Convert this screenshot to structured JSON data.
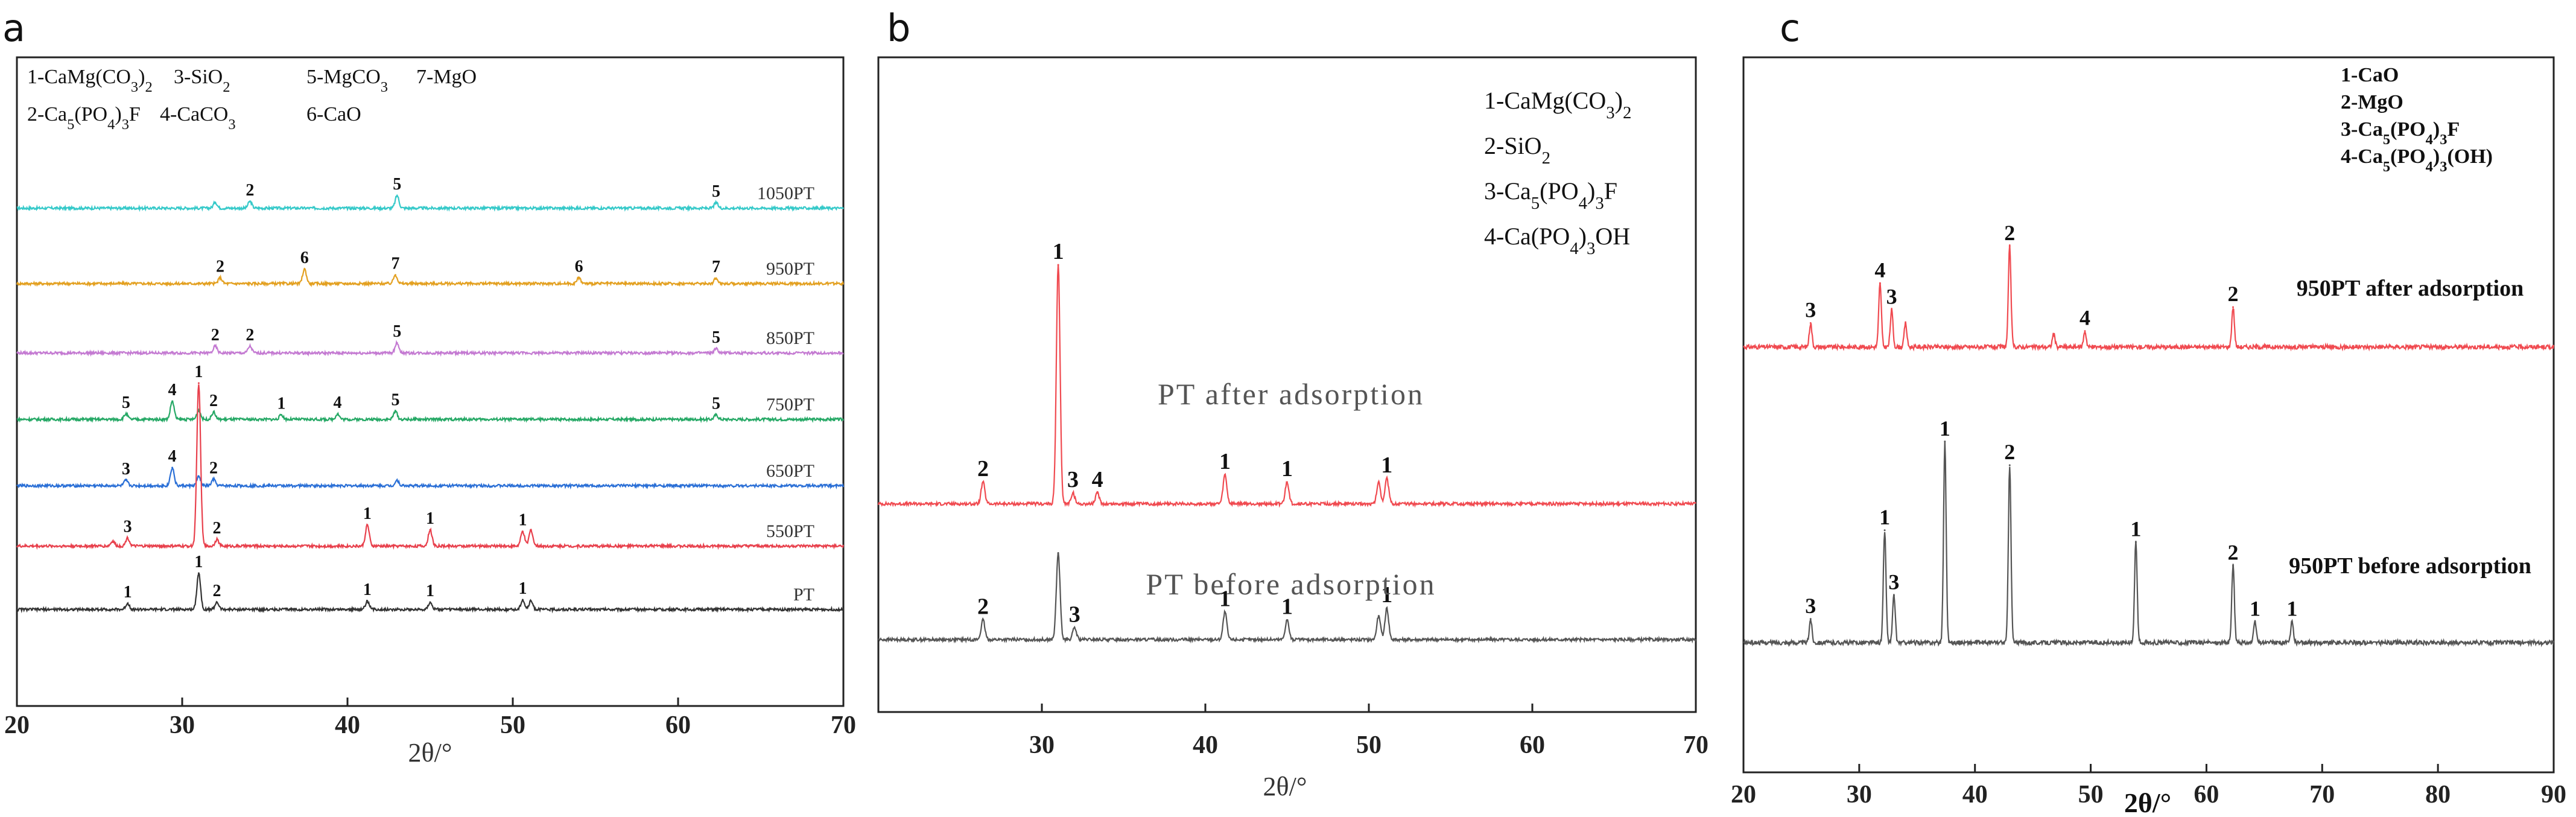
{
  "figure": {
    "panels": [
      {
        "letter": "a"
      },
      {
        "letter": "b"
      },
      {
        "letter": "c"
      }
    ]
  },
  "chart_data": [
    {
      "type": "line",
      "panel": "a",
      "xlabel": "2θ/°",
      "ylabel": "",
      "xlim": [
        20,
        70
      ],
      "xticks": [
        "20",
        "30",
        "40",
        "50",
        "60",
        "70"
      ],
      "grid": false,
      "legend_position": "top-left",
      "legend": [
        "1-CaMg(CO3)2",
        "3-SiO2",
        "5-MgCO3",
        "7-MgO",
        "2-Ca5(PO4)3F",
        "4-CaCO3",
        "6-CaO"
      ],
      "series": [
        {
          "name": "1050PT",
          "color": "#35c9c9",
          "peaks": [
            {
              "x": 32.0,
              "h": 0.3,
              "label": ""
            },
            {
              "x": 34.1,
              "h": 0.35,
              "label": "2"
            },
            {
              "x": 43.0,
              "h": 0.65,
              "label": "5"
            },
            {
              "x": 62.3,
              "h": 0.28,
              "label": "5"
            }
          ]
        },
        {
          "name": "950PT",
          "color": "#e3a020",
          "peaks": [
            {
              "x": 32.3,
              "h": 0.3,
              "label": "2"
            },
            {
              "x": 37.4,
              "h": 0.75,
              "label": "6"
            },
            {
              "x": 42.9,
              "h": 0.45,
              "label": "7"
            },
            {
              "x": 54.0,
              "h": 0.3,
              "label": "6"
            },
            {
              "x": 62.3,
              "h": 0.28,
              "label": "7"
            }
          ]
        },
        {
          "name": "850PT",
          "color": "#c47ad2",
          "peaks": [
            {
              "x": 32.0,
              "h": 0.4,
              "label": "2"
            },
            {
              "x": 34.1,
              "h": 0.4,
              "label": "2"
            },
            {
              "x": 43.0,
              "h": 0.6,
              "label": "5"
            },
            {
              "x": 62.3,
              "h": 0.25,
              "label": "5"
            }
          ]
        },
        {
          "name": "750PT",
          "color": "#25a865",
          "peaks": [
            {
              "x": 26.6,
              "h": 0.3,
              "label": "5"
            },
            {
              "x": 29.4,
              "h": 1.0,
              "label": "4"
            },
            {
              "x": 31.0,
              "h": 0.5,
              "label": ""
            },
            {
              "x": 31.9,
              "h": 0.4,
              "label": "2"
            },
            {
              "x": 36.0,
              "h": 0.25,
              "label": "1"
            },
            {
              "x": 39.4,
              "h": 0.3,
              "label": "4"
            },
            {
              "x": 42.9,
              "h": 0.45,
              "label": "5"
            },
            {
              "x": 62.3,
              "h": 0.25,
              "label": "5"
            }
          ]
        },
        {
          "name": "650PT",
          "color": "#2a6fd6",
          "peaks": [
            {
              "x": 26.6,
              "h": 0.3,
              "label": "3"
            },
            {
              "x": 29.4,
              "h": 1.0,
              "label": "4"
            },
            {
              "x": 31.0,
              "h": 0.5,
              "label": ""
            },
            {
              "x": 31.9,
              "h": 0.35,
              "label": "2"
            },
            {
              "x": 43.0,
              "h": 0.3,
              "label": ""
            }
          ]
        },
        {
          "name": "550PT",
          "color": "#e8404c",
          "peaks": [
            {
              "x": 25.8,
              "h": 0.3,
              "label": ""
            },
            {
              "x": 26.7,
              "h": 0.5,
              "label": "3"
            },
            {
              "x": 31.0,
              "h": 10.0,
              "label": "1"
            },
            {
              "x": 32.1,
              "h": 0.4,
              "label": "2"
            },
            {
              "x": 41.2,
              "h": 1.3,
              "label": "1"
            },
            {
              "x": 45.0,
              "h": 1.0,
              "label": "1"
            },
            {
              "x": 50.6,
              "h": 0.9,
              "label": "1"
            },
            {
              "x": 51.1,
              "h": 1.0,
              "label": ""
            }
          ]
        },
        {
          "name": "PT",
          "color": "#333333",
          "peaks": [
            {
              "x": 26.7,
              "h": 0.25,
              "label": "1"
            },
            {
              "x": 31.0,
              "h": 1.5,
              "label": "1"
            },
            {
              "x": 32.1,
              "h": 0.3,
              "label": "2"
            },
            {
              "x": 41.2,
              "h": 0.35,
              "label": "1"
            },
            {
              "x": 45.0,
              "h": 0.3,
              "label": "1"
            },
            {
              "x": 50.6,
              "h": 0.4,
              "label": "1"
            },
            {
              "x": 51.1,
              "h": 0.35,
              "label": ""
            }
          ]
        }
      ]
    },
    {
      "type": "line",
      "panel": "b",
      "xlabel": "2θ/°",
      "ylabel": "",
      "xlim": [
        20,
        70
      ],
      "xticks": [
        "30",
        "40",
        "50",
        "60",
        "70"
      ],
      "grid": false,
      "legend_position": "top-right",
      "legend": [
        "1-CaMg(CO3)2",
        "2-SiO2",
        "3-Ca5(PO4)3F",
        "4-Ca(PO4)3OH"
      ],
      "series": [
        {
          "name": "PT  after  adsorption",
          "color": "#f04a50",
          "peaks": [
            {
              "x": 26.4,
              "h": 0.6,
              "label": "2"
            },
            {
              "x": 31.0,
              "h": 6.6,
              "label": "1"
            },
            {
              "x": 31.9,
              "h": 0.3,
              "label": "3"
            },
            {
              "x": 33.4,
              "h": 0.3,
              "label": "4"
            },
            {
              "x": 41.2,
              "h": 0.8,
              "label": "1"
            },
            {
              "x": 45.0,
              "h": 0.6,
              "label": "1"
            },
            {
              "x": 50.6,
              "h": 0.6,
              "label": ""
            },
            {
              "x": 51.1,
              "h": 0.7,
              "label": "1"
            }
          ]
        },
        {
          "name": "PT  before  adsorption",
          "color": "#555555",
          "peaks": [
            {
              "x": 26.4,
              "h": 0.5,
              "label": "2"
            },
            {
              "x": 31.0,
              "h": 2.2,
              "label": ""
            },
            {
              "x": 32.0,
              "h": 0.3,
              "label": "3"
            },
            {
              "x": 41.2,
              "h": 0.7,
              "label": "1"
            },
            {
              "x": 45.0,
              "h": 0.5,
              "label": "1"
            },
            {
              "x": 50.6,
              "h": 0.6,
              "label": ""
            },
            {
              "x": 51.1,
              "h": 0.8,
              "label": "1"
            }
          ]
        }
      ]
    },
    {
      "type": "line",
      "panel": "c",
      "xlabel": "2θ/°",
      "ylabel": "",
      "xlim": [
        20,
        90
      ],
      "xticks": [
        "20",
        "30",
        "40",
        "50",
        "60",
        "70",
        "80",
        "90"
      ],
      "grid": false,
      "legend_position": "top-right",
      "legend": [
        "1-CaO",
        "2-MgO",
        "3-Ca5(PO4)3F",
        "4-Ca5(PO4)3(OH)"
      ],
      "series": [
        {
          "name": "950PT after adsorption",
          "color": "#f04a50",
          "peaks": [
            {
              "x": 25.8,
              "h": 0.45,
              "label": "3"
            },
            {
              "x": 31.8,
              "h": 1.2,
              "label": "4"
            },
            {
              "x": 32.8,
              "h": 0.7,
              "label": "3"
            },
            {
              "x": 34.0,
              "h": 0.45,
              "label": ""
            },
            {
              "x": 43.0,
              "h": 1.9,
              "label": "2"
            },
            {
              "x": 46.8,
              "h": 0.25,
              "label": ""
            },
            {
              "x": 49.5,
              "h": 0.3,
              "label": "4"
            },
            {
              "x": 62.3,
              "h": 0.75,
              "label": "2"
            }
          ]
        },
        {
          "name": "950PT before adsorption",
          "color": "#555555",
          "peaks": [
            {
              "x": 25.8,
              "h": 0.4,
              "label": "3"
            },
            {
              "x": 32.2,
              "h": 1.9,
              "label": "1"
            },
            {
              "x": 33.0,
              "h": 0.8,
              "label": "3"
            },
            {
              "x": 37.4,
              "h": 3.4,
              "label": "1"
            },
            {
              "x": 43.0,
              "h": 3.0,
              "label": "2"
            },
            {
              "x": 53.9,
              "h": 1.7,
              "label": "1"
            },
            {
              "x": 62.3,
              "h": 1.3,
              "label": "2"
            },
            {
              "x": 64.2,
              "h": 0.35,
              "label": "1"
            },
            {
              "x": 67.4,
              "h": 0.35,
              "label": "1"
            }
          ]
        }
      ]
    }
  ]
}
